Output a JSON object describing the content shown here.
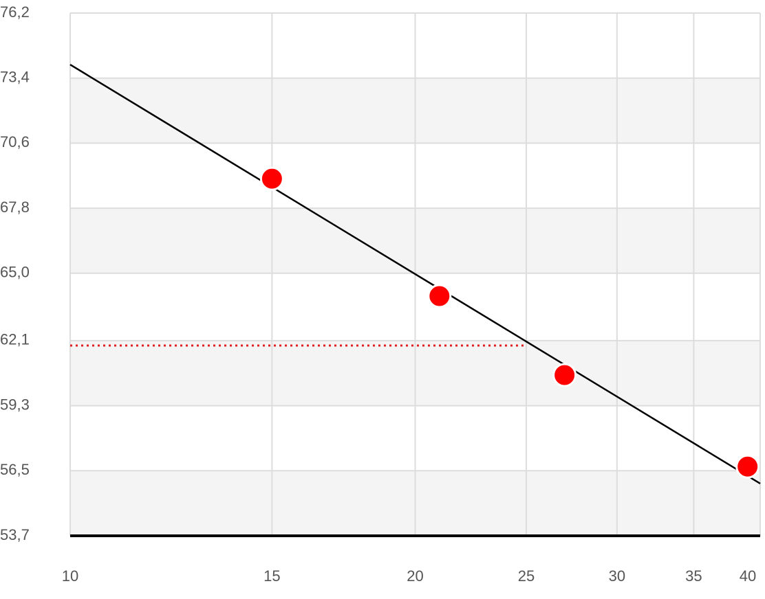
{
  "chart_data": {
    "type": "scatter",
    "x": [
      15,
      21,
      27,
      39
    ],
    "values": [
      69.07,
      64.02,
      60.62,
      56.68
    ],
    "color": "#ff0000",
    "trend": {
      "x": [
        10,
        40
      ],
      "values": [
        73.98,
        55.95
      ],
      "color": "#000000"
    },
    "reference": {
      "x": [
        10,
        25
      ],
      "values": [
        61.89,
        61.89
      ],
      "color": "#e02020"
    },
    "xlim": [
      10,
      40
    ],
    "xticks": [
      10,
      15,
      20,
      25,
      30,
      35,
      40
    ],
    "xscale": "log",
    "ylim": [
      53.7,
      76.2
    ],
    "yticks": [
      {
        "value": 53.7,
        "label": "53,7"
      },
      {
        "value": 56.5,
        "label": "56,5"
      },
      {
        "value": 59.3,
        "label": "59,3"
      },
      {
        "value": 62.1,
        "label": "62,1"
      },
      {
        "value": 65.0,
        "label": "65,0"
      },
      {
        "value": 67.8,
        "label": "67,8"
      },
      {
        "value": 70.6,
        "label": "70,6"
      },
      {
        "value": 73.4,
        "label": "73,4"
      },
      {
        "value": 76.2,
        "label": "76,2"
      }
    ],
    "grid": true,
    "bands": true
  }
}
